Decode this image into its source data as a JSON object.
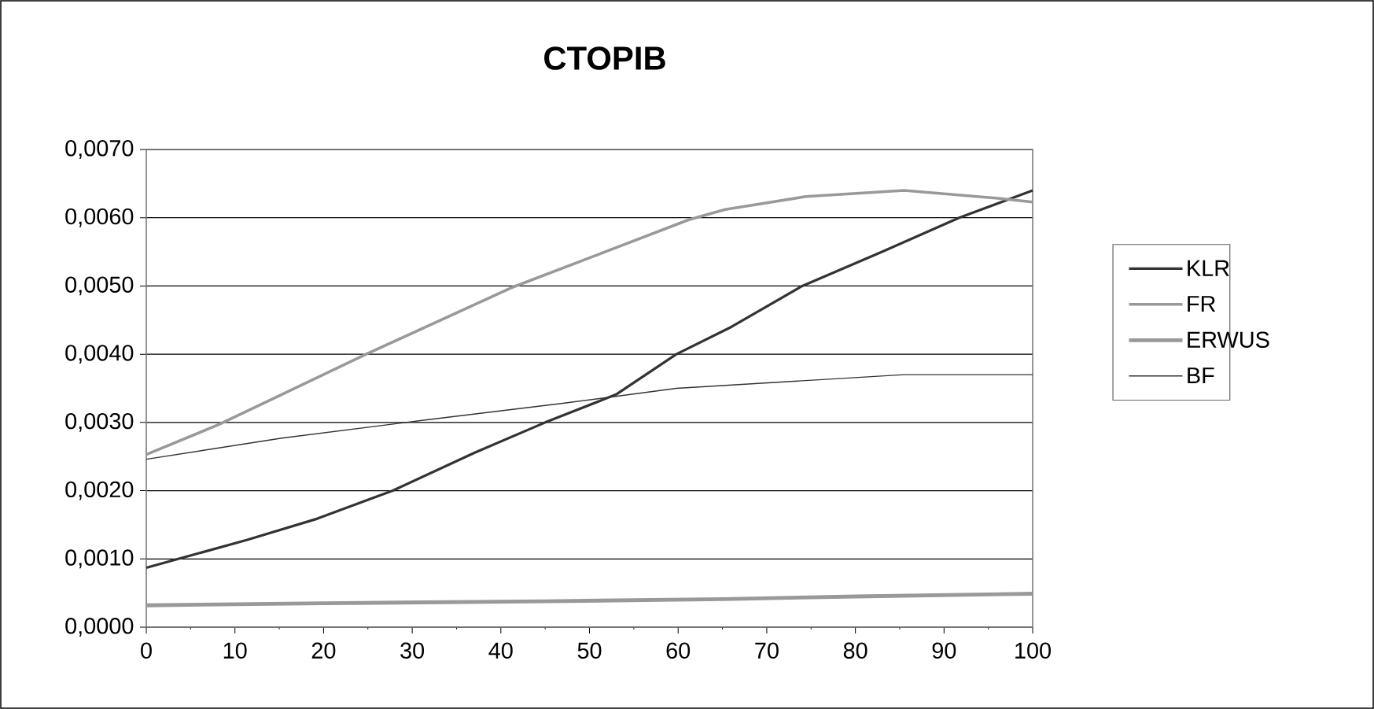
{
  "chart_data": {
    "type": "line",
    "title": "CTOPIB",
    "xlim": [
      0,
      100
    ],
    "xticks": [
      0,
      10,
      20,
      30,
      40,
      50,
      60,
      70,
      80,
      90,
      100
    ],
    "ylim": [
      0,
      0.007
    ],
    "yticks": [
      {
        "value": 0,
        "label": "0,0000"
      },
      {
        "value": 0.001,
        "label": "0,0010"
      },
      {
        "value": 0.002,
        "label": "0,0020"
      },
      {
        "value": 0.003,
        "label": "0,0030"
      },
      {
        "value": 0.004,
        "label": "0,0040"
      },
      {
        "value": 0.005,
        "label": "0,0050"
      },
      {
        "value": 0.006,
        "label": "0,0060"
      },
      {
        "value": 0.007,
        "label": "0,0070"
      }
    ],
    "grid": "y",
    "legend": "right",
    "series": [
      {
        "name": "KLR",
        "color": "#333333",
        "x": [
          0,
          11.4,
          19.3,
          27.8,
          37.1,
          45,
          53,
          59.8,
          66,
          74,
          83,
          91.7,
          100
        ],
        "values": [
          0.00087,
          0.00128,
          0.00159,
          0.002,
          0.00256,
          0.003,
          0.00341,
          0.004,
          0.0044,
          0.005,
          0.0055,
          0.006,
          0.0064
        ]
      },
      {
        "name": "FR",
        "color": "#999999",
        "x": [
          0,
          8.2,
          24.8,
          41.1,
          61.2,
          65.3,
          74.4,
          85.5,
          96.5,
          100
        ],
        "values": [
          0.00253,
          0.00297,
          0.004,
          0.00497,
          0.00597,
          0.00612,
          0.00631,
          0.0064,
          0.00628,
          0.00623
        ]
      },
      {
        "name": "ERWUS",
        "color": "#999999",
        "x": [
          0,
          20,
          45,
          65,
          80,
          100
        ],
        "values": [
          0.00032,
          0.00035,
          0.00038,
          0.00041,
          0.00045,
          0.00049
        ]
      },
      {
        "name": "BF",
        "color": "#333333",
        "x": [
          0,
          15.3,
          31.1,
          47,
          59.8,
          85.5,
          100
        ],
        "values": [
          0.00246,
          0.00277,
          0.00303,
          0.00328,
          0.0035,
          0.0037,
          0.0037
        ]
      }
    ]
  }
}
